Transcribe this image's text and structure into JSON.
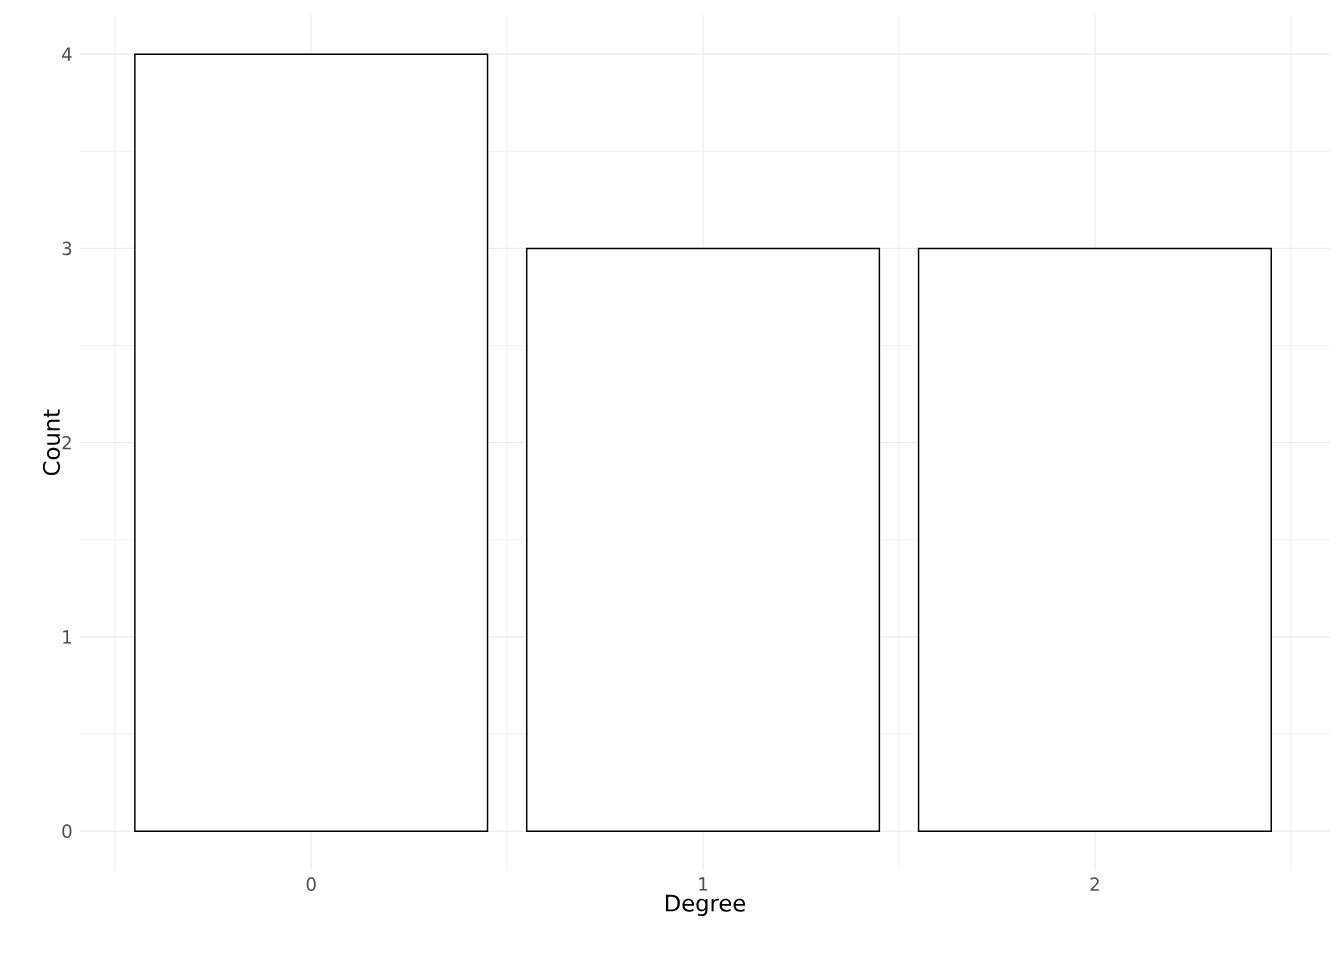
{
  "chart_data": {
    "type": "bar",
    "xlabel": "Degree",
    "ylabel": "Count",
    "x": [
      0,
      1,
      2
    ],
    "values": [
      4,
      3,
      3
    ],
    "color": "#ffffff",
    "xlim": [
      -0.59,
      2.6
    ],
    "xticks": [
      0,
      1,
      2
    ],
    "ylim": [
      -0.2,
      4.2
    ],
    "yticks": [
      0,
      1,
      2,
      3,
      4
    ],
    "grid": true
  }
}
